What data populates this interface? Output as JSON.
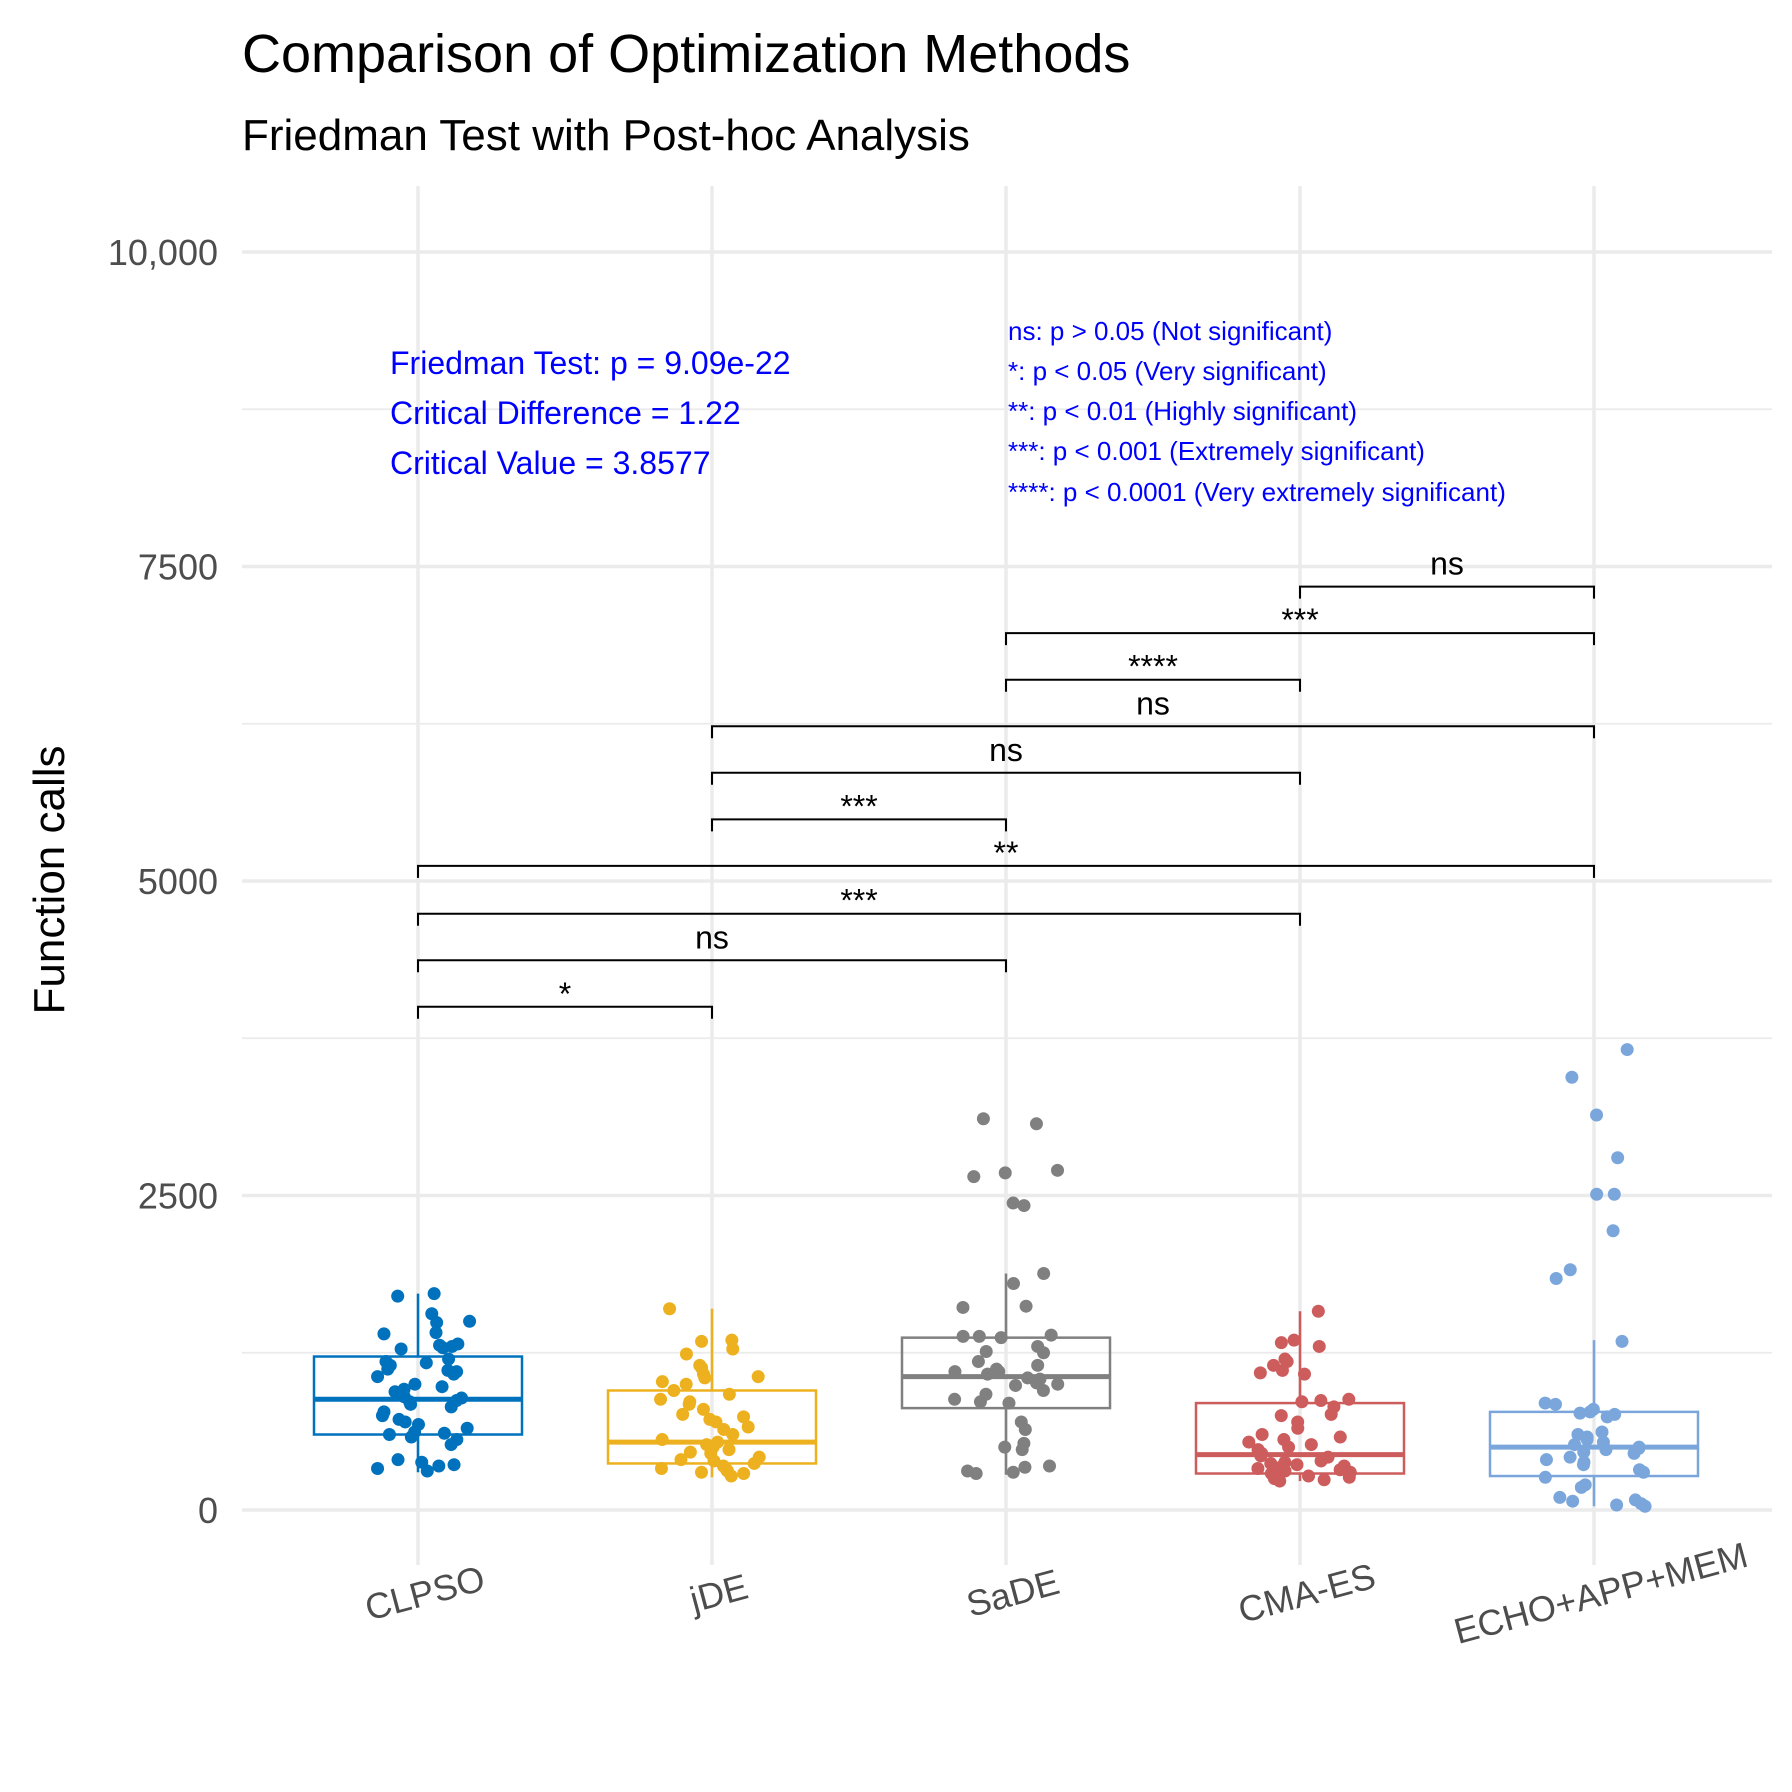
{
  "chart_data": {
    "type": "box",
    "title": "Comparison of Optimization Methods",
    "subtitle": "Friedman Test with Post-hoc Analysis",
    "xlabel": "",
    "ylabel": "Function calls",
    "ylim": [
      -300,
      10500
    ],
    "y_ticks": [
      0,
      2500,
      5000,
      7500,
      10000
    ],
    "y_tick_labels": [
      "0",
      "2500",
      "5000",
      "7500",
      "10,000"
    ],
    "grid": true,
    "categories": [
      "CLPSO",
      "jDE",
      "SaDE",
      "CMA-ES",
      "ECHO+APP+MEM"
    ],
    "colors": [
      "#0072BD",
      "#EDB120",
      "#808080",
      "#CD5C5C",
      "#7AA6DC"
    ],
    "boxes": [
      {
        "whisker_low": 300,
        "q1": 600,
        "median": 880,
        "q3": 1220,
        "whisker_high": 1720
      },
      {
        "whisker_low": 260,
        "q1": 370,
        "median": 540,
        "q3": 950,
        "whisker_high": 1600
      },
      {
        "whisker_low": 280,
        "q1": 810,
        "median": 1060,
        "q3": 1370,
        "whisker_high": 1880
      },
      {
        "whisker_low": 230,
        "q1": 290,
        "median": 440,
        "q3": 850,
        "whisker_high": 1580
      },
      {
        "whisker_low": 30,
        "q1": 270,
        "median": 500,
        "q3": 780,
        "whisker_high": 1350
      }
    ],
    "points": [
      [
        1720,
        1700,
        1560,
        1500,
        1490,
        1410,
        1400,
        1320,
        1310,
        1300,
        1290,
        1280,
        1200,
        1180,
        1170,
        1150,
        1120,
        1110,
        1100,
        1080,
        1060,
        1000,
        980,
        960,
        940,
        900,
        890,
        870,
        860,
        840,
        820,
        780,
        750,
        720,
        700,
        680,
        650,
        620,
        610,
        600,
        580,
        560,
        520,
        400,
        380,
        360,
        350,
        330,
        310
      ],
      [
        1600,
        1350,
        1340,
        1280,
        1240,
        1150,
        1130,
        1080,
        1060,
        1050,
        1020,
        1000,
        950,
        920,
        880,
        860,
        840,
        800,
        760,
        740,
        720,
        700,
        660,
        640,
        600,
        560,
        540,
        520,
        500,
        480,
        460,
        450,
        420,
        400,
        390,
        370,
        350,
        330,
        320,
        310,
        300,
        290,
        270
      ],
      [
        3110,
        3070,
        2700,
        2680,
        2650,
        2440,
        2420,
        1880,
        1800,
        1620,
        1610,
        1390,
        1380,
        1380,
        1370,
        1300,
        1260,
        1250,
        1180,
        1150,
        1120,
        1100,
        1100,
        1080,
        1050,
        1040,
        1010,
        1000,
        990,
        950,
        920,
        880,
        860,
        850,
        700,
        640,
        530,
        500,
        480,
        350,
        340,
        310,
        300,
        290
      ],
      [
        1580,
        1350,
        1330,
        1300,
        1200,
        1180,
        1150,
        1110,
        1090,
        1080,
        880,
        870,
        860,
        820,
        760,
        750,
        700,
        650,
        600,
        580,
        560,
        540,
        520,
        500,
        480,
        450,
        440,
        430,
        420,
        400,
        390,
        380,
        370,
        360,
        350,
        340,
        330,
        320,
        310,
        300,
        290,
        280,
        270,
        260,
        250,
        240,
        230
      ],
      [
        3660,
        3440,
        3140,
        2800,
        2510,
        2510,
        2220,
        1910,
        1840,
        1340,
        850,
        840,
        800,
        780,
        770,
        760,
        740,
        620,
        600,
        580,
        560,
        540,
        520,
        500,
        490,
        480,
        460,
        450,
        420,
        400,
        380,
        360,
        320,
        300,
        260,
        200,
        180,
        100,
        80,
        70,
        50,
        40,
        30
      ]
    ],
    "comparisons": [
      {
        "from": 3,
        "to": 4,
        "y": 7340,
        "label": "ns"
      },
      {
        "from": 2,
        "to": 4,
        "y": 6970,
        "label": "***"
      },
      {
        "from": 2,
        "to": 3,
        "y": 6600,
        "label": "****"
      },
      {
        "from": 1,
        "to": 4,
        "y": 6230,
        "label": "ns"
      },
      {
        "from": 1,
        "to": 3,
        "y": 5860,
        "label": "ns"
      },
      {
        "from": 1,
        "to": 2,
        "y": 5490,
        "label": "***"
      },
      {
        "from": 0,
        "to": 4,
        "y": 5120,
        "label": "**"
      },
      {
        "from": 0,
        "to": 3,
        "y": 4740,
        "label": "***"
      },
      {
        "from": 0,
        "to": 2,
        "y": 4370,
        "label": "ns"
      },
      {
        "from": 0,
        "to": 1,
        "y": 4000,
        "label": "*"
      }
    ],
    "annotations": {
      "stats": [
        "Friedman Test: p = 9.09e-22",
        "Critical Difference = 1.22",
        "Critical Value = 3.8577"
      ],
      "legend": [
        "ns: p > 0.05 (Not significant)",
        "*: p < 0.05 (Very significant)",
        "**: p < 0.01 (Highly significant)",
        "***: p < 0.001  (Extremely significant)",
        "****: p < 0.0001  (Very extremely significant)"
      ]
    }
  }
}
